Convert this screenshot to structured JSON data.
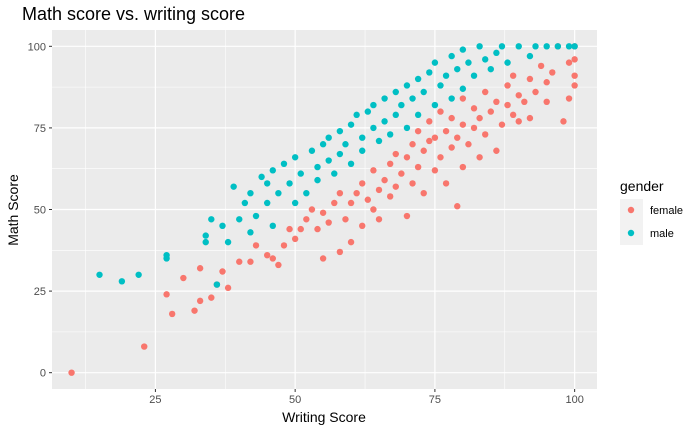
{
  "chart_data": {
    "type": "scatter",
    "title": "Math score vs. writing score",
    "xlabel": "Writing Score",
    "ylabel": "Math Score",
    "xlim": [
      6.5,
      104
    ],
    "ylim": [
      -5,
      105
    ],
    "x_ticks": [
      25,
      50,
      75,
      100
    ],
    "y_ticks": [
      0,
      25,
      50,
      75,
      100
    ],
    "x_tick_labels": [
      "25",
      "50",
      "75",
      "100"
    ],
    "y_tick_labels": [
      "0",
      "25",
      "50",
      "75",
      "100"
    ],
    "grid": true,
    "legend": {
      "title": "gender",
      "position": "right"
    },
    "series": [
      {
        "name": "female",
        "color": "#F8766D",
        "points": [
          [
            10,
            0
          ],
          [
            23,
            8
          ],
          [
            27,
            24
          ],
          [
            28,
            18
          ],
          [
            30,
            29
          ],
          [
            32,
            19
          ],
          [
            33,
            22
          ],
          [
            33,
            32
          ],
          [
            35,
            23
          ],
          [
            36,
            27
          ],
          [
            37,
            31
          ],
          [
            38,
            26
          ],
          [
            40,
            34
          ],
          [
            42,
            34
          ],
          [
            43,
            39
          ],
          [
            45,
            36
          ],
          [
            46,
            35
          ],
          [
            47,
            33
          ],
          [
            48,
            39
          ],
          [
            49,
            44
          ],
          [
            50,
            41
          ],
          [
            51,
            44
          ],
          [
            52,
            47
          ],
          [
            53,
            50
          ],
          [
            54,
            44
          ],
          [
            55,
            35
          ],
          [
            55,
            49
          ],
          [
            56,
            46
          ],
          [
            57,
            52
          ],
          [
            58,
            37
          ],
          [
            58,
            55
          ],
          [
            59,
            47
          ],
          [
            60,
            40
          ],
          [
            60,
            52
          ],
          [
            61,
            55
          ],
          [
            62,
            45
          ],
          [
            62,
            58
          ],
          [
            63,
            53
          ],
          [
            64,
            50
          ],
          [
            64,
            62
          ],
          [
            65,
            47
          ],
          [
            65,
            56
          ],
          [
            66,
            59
          ],
          [
            67,
            64
          ],
          [
            67,
            54
          ],
          [
            68,
            57
          ],
          [
            68,
            67
          ],
          [
            69,
            61
          ],
          [
            70,
            48
          ],
          [
            70,
            66
          ],
          [
            71,
            58
          ],
          [
            71,
            70
          ],
          [
            72,
            63
          ],
          [
            72,
            74
          ],
          [
            73,
            55
          ],
          [
            73,
            68
          ],
          [
            74,
            71
          ],
          [
            74,
            77
          ],
          [
            75,
            62
          ],
          [
            75,
            72
          ],
          [
            76,
            66
          ],
          [
            76,
            80
          ],
          [
            77,
            58
          ],
          [
            77,
            74
          ],
          [
            78,
            69
          ],
          [
            78,
            78
          ],
          [
            79,
            51
          ],
          [
            79,
            72
          ],
          [
            80,
            63
          ],
          [
            80,
            76
          ],
          [
            80,
            84
          ],
          [
            81,
            70
          ],
          [
            82,
            75
          ],
          [
            82,
            81
          ],
          [
            83,
            66
          ],
          [
            83,
            78
          ],
          [
            84,
            73
          ],
          [
            84,
            86
          ],
          [
            85,
            80
          ],
          [
            86,
            68
          ],
          [
            86,
            83
          ],
          [
            87,
            76
          ],
          [
            88,
            82
          ],
          [
            88,
            88
          ],
          [
            89,
            79
          ],
          [
            89,
            91
          ],
          [
            90,
            77
          ],
          [
            90,
            85
          ],
          [
            91,
            83
          ],
          [
            92,
            90
          ],
          [
            92,
            78
          ],
          [
            93,
            86
          ],
          [
            94,
            94
          ],
          [
            95,
            83
          ],
          [
            95,
            89
          ],
          [
            96,
            92
          ],
          [
            97,
            100
          ],
          [
            98,
            77
          ],
          [
            99,
            95
          ],
          [
            99,
            84
          ],
          [
            100,
            100
          ],
          [
            100,
            96
          ],
          [
            100,
            88
          ],
          [
            100,
            91
          ]
        ]
      },
      {
        "name": "male",
        "color": "#00BFC4",
        "points": [
          [
            15,
            30
          ],
          [
            19,
            28
          ],
          [
            22,
            30
          ],
          [
            27,
            35
          ],
          [
            27,
            36
          ],
          [
            34,
            40
          ],
          [
            34,
            42
          ],
          [
            35,
            47
          ],
          [
            36,
            27
          ],
          [
            37,
            45
          ],
          [
            38,
            40
          ],
          [
            39,
            57
          ],
          [
            40,
            47
          ],
          [
            41,
            52
          ],
          [
            42,
            55
          ],
          [
            42,
            43
          ],
          [
            43,
            48
          ],
          [
            44,
            60
          ],
          [
            45,
            52
          ],
          [
            45,
            58
          ],
          [
            46,
            62
          ],
          [
            46,
            45
          ],
          [
            47,
            55
          ],
          [
            48,
            64
          ],
          [
            49,
            58
          ],
          [
            50,
            52
          ],
          [
            50,
            66
          ],
          [
            51,
            61
          ],
          [
            52,
            55
          ],
          [
            53,
            68
          ],
          [
            54,
            63
          ],
          [
            54,
            59
          ],
          [
            55,
            70
          ],
          [
            56,
            65
          ],
          [
            56,
            72
          ],
          [
            57,
            61
          ],
          [
            58,
            74
          ],
          [
            58,
            67
          ],
          [
            59,
            70
          ],
          [
            60,
            76
          ],
          [
            60,
            64
          ],
          [
            61,
            79
          ],
          [
            62,
            72
          ],
          [
            62,
            68
          ],
          [
            63,
            80
          ],
          [
            64,
            75
          ],
          [
            64,
            82
          ],
          [
            65,
            71
          ],
          [
            66,
            77
          ],
          [
            66,
            84
          ],
          [
            67,
            73
          ],
          [
            68,
            86
          ],
          [
            68,
            79
          ],
          [
            69,
            82
          ],
          [
            70,
            75
          ],
          [
            70,
            88
          ],
          [
            71,
            84
          ],
          [
            72,
            90
          ],
          [
            72,
            79
          ],
          [
            73,
            86
          ],
          [
            74,
            92
          ],
          [
            75,
            82
          ],
          [
            75,
            95
          ],
          [
            76,
            88
          ],
          [
            77,
            91
          ],
          [
            78,
            97
          ],
          [
            78,
            84
          ],
          [
            79,
            93
          ],
          [
            80,
            87
          ],
          [
            80,
            99
          ],
          [
            81,
            95
          ],
          [
            82,
            91
          ],
          [
            83,
            100
          ],
          [
            84,
            96
          ],
          [
            85,
            93
          ],
          [
            86,
            98
          ],
          [
            87,
            100
          ],
          [
            88,
            95
          ],
          [
            90,
            100
          ],
          [
            92,
            97
          ],
          [
            93,
            100
          ],
          [
            95,
            100
          ],
          [
            97,
            100
          ],
          [
            99,
            100
          ],
          [
            100,
            100
          ]
        ]
      }
    ]
  }
}
